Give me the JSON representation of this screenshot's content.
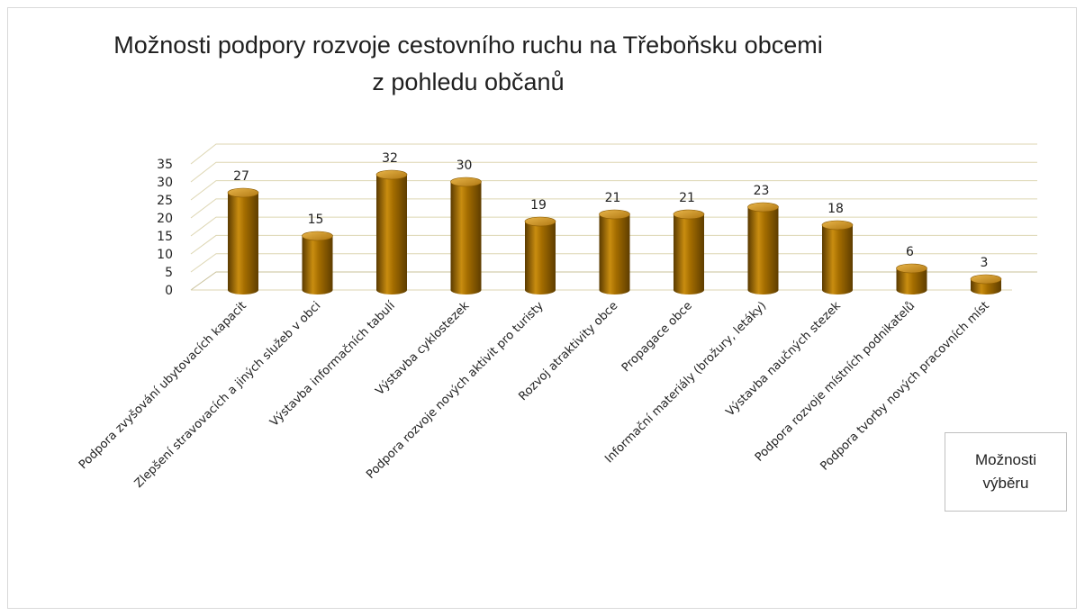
{
  "chart_data": {
    "type": "bar",
    "title": "Možnosti podpory rozvoje cestovního ruchu na Třeboňsku obcemi z pohledu občanů",
    "title_lines": [
      "Možnosti podpory rozvoje cestovního ruchu na Třeboňsku obcemi",
      "z pohledu občanů"
    ],
    "categories": [
      "Podpora zvyšování ubytovacích kapacit",
      "Zlepšení stravovacích a jiných služeb v obci",
      "Výstavba informačních tabulí",
      "Výstavba cyklostezek",
      "Podpora rozvoje nových aktivit pro turisty",
      "Rozvoj atraktivity obce",
      "Propagace obce",
      "Informační materiály (brožury, letáky)",
      "Výstavba naučných stezek",
      "Podpora rozvoje místních podnikatelů",
      "Podpora tvorby nových pracovních míst"
    ],
    "series": [
      {
        "name": "Možnosti výběru",
        "values": [
          27,
          15,
          32,
          30,
          19,
          21,
          21,
          23,
          18,
          6,
          3
        ]
      }
    ],
    "yticks": [
      0,
      5,
      10,
      15,
      20,
      25,
      30,
      35
    ],
    "ylim": [
      0,
      35
    ],
    "xlabel": "",
    "ylabel": "",
    "grid": true,
    "legend_position": "right",
    "bar_color": "#a46d00",
    "style": "3d-cylinder"
  }
}
